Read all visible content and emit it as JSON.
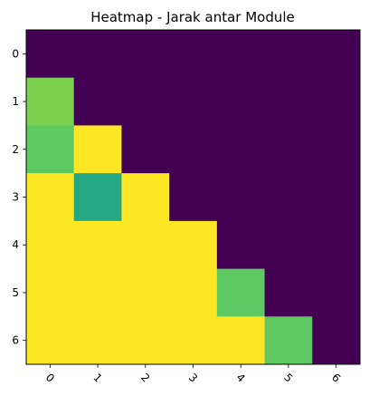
{
  "chart_data": {
    "type": "heatmap",
    "title": "Heatmap - Jarak antar Module",
    "xlabel": "",
    "ylabel": "",
    "x_categories": [
      "0",
      "1",
      "2",
      "3",
      "4",
      "5",
      "6"
    ],
    "y_categories": [
      "0",
      "1",
      "2",
      "3",
      "4",
      "5",
      "6"
    ],
    "x_tick_rotation_deg": 45,
    "colormap": "viridis",
    "value_range": [
      0,
      1
    ],
    "values": [
      [
        0,
        0,
        0,
        0,
        0,
        0,
        0
      ],
      [
        0.8,
        0,
        0,
        0,
        0,
        0,
        0
      ],
      [
        0.75,
        1,
        0,
        0,
        0,
        0,
        0
      ],
      [
        1,
        0.6,
        1,
        0,
        0,
        0,
        0
      ],
      [
        1,
        1,
        1,
        1,
        0,
        0,
        0
      ],
      [
        1,
        1,
        1,
        1,
        0.75,
        0,
        0
      ],
      [
        1,
        1,
        1,
        1,
        1,
        0.75,
        0
      ]
    ],
    "grid": false,
    "colorbar": false,
    "colors": {
      "low": "#440154",
      "mid": "#21918c",
      "high": "#fde725"
    }
  }
}
